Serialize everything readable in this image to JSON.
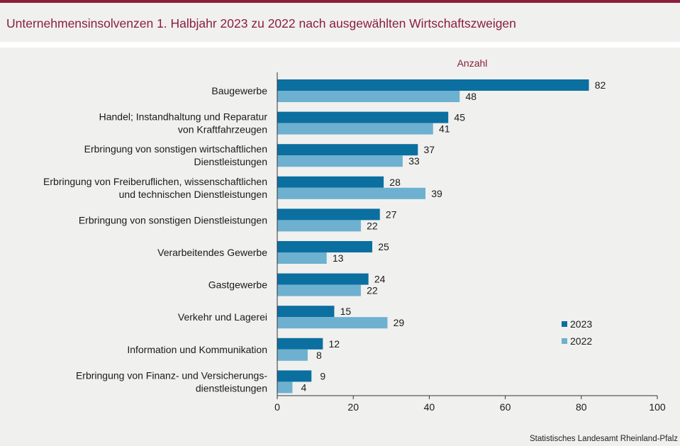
{
  "title": "Unternehmensinsolvenzen 1. Halbjahr 2023 zu 2022 nach ausgewählten Wirtschaftszweigen",
  "source": "Statistisches Landesamt  Rheinland-Pfalz",
  "colors": {
    "s2023": "#0b6fa0",
    "s2022": "#6eb0cf",
    "accent": "#8b1f3a"
  },
  "chart_data": {
    "type": "bar",
    "orientation": "horizontal",
    "unit_label": "Anzahl",
    "categories": [
      [
        "Baugewerbe"
      ],
      [
        "Handel; Instandhaltung und Reparatur",
        "von Kraftfahrzeugen"
      ],
      [
        "Erbringung von sonstigen wirtschaftlichen",
        "Dienstleistungen"
      ],
      [
        "Erbringung von Freiberuflichen, wissenschaftlichen",
        "und technischen Dienstleistungen"
      ],
      [
        "Erbringung von sonstigen Dienstleistungen"
      ],
      [
        "Verarbeitendes Gewerbe"
      ],
      [
        "Gastgewerbe"
      ],
      [
        "Verkehr und Lagerei"
      ],
      [
        "Information und Kommunikation"
      ],
      [
        "Erbringung von Finanz- und Versicherungs-",
        "dienstleistungen"
      ]
    ],
    "series": [
      {
        "name": "2023",
        "values": [
          82,
          45,
          37,
          28,
          27,
          25,
          24,
          15,
          12,
          9
        ]
      },
      {
        "name": "2022",
        "values": [
          48,
          41,
          33,
          39,
          22,
          13,
          22,
          29,
          8,
          4
        ]
      }
    ],
    "xlim": [
      0,
      100
    ],
    "xticks": [
      0,
      20,
      40,
      60,
      80,
      100
    ],
    "legend": "right",
    "grid": false
  }
}
